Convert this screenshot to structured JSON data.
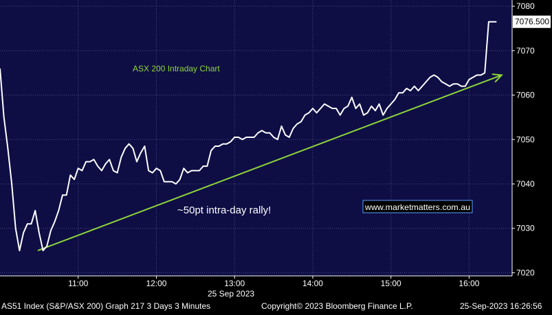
{
  "chart_data": {
    "type": "line",
    "title": "ASX 200 Intraday Chart",
    "annotation": "~50pt intra-day rally!",
    "watermark": "www.marketmatters.com.au",
    "date_label": "25 Sep 2023",
    "last_price_label": "7076.500",
    "x_ticks": [
      "11:00",
      "12:00",
      "13:00",
      "14:00",
      "15:00",
      "16:00"
    ],
    "y_ticks": [
      7020,
      7030,
      7040,
      7050,
      7060,
      7070,
      7080
    ],
    "ylim": [
      7019.3,
      7081.4
    ],
    "xlim": [
      "10:00",
      "16:33"
    ],
    "grid": true,
    "y_axis_side": "right",
    "series": [
      {
        "color": "#ffffff",
        "points": [
          [
            "10:00",
            7066
          ],
          [
            "10:03",
            7055
          ],
          [
            "10:06",
            7048
          ],
          [
            "10:09",
            7040
          ],
          [
            "10:12",
            7030
          ],
          [
            "10:15",
            7025
          ],
          [
            "10:18",
            7029
          ],
          [
            "10:21",
            7031
          ],
          [
            "10:24",
            7031
          ],
          [
            "10:27",
            7034
          ],
          [
            "10:30",
            7029
          ],
          [
            "10:33",
            7025
          ],
          [
            "10:36",
            7026
          ],
          [
            "10:39",
            7029.5
          ],
          [
            "10:42",
            7031.5
          ],
          [
            "10:45",
            7034
          ],
          [
            "10:48",
            7037.5
          ],
          [
            "10:51",
            7037.5
          ],
          [
            "10:54",
            7042
          ],
          [
            "10:57",
            7041
          ],
          [
            "11:00",
            7043.5
          ],
          [
            "11:03",
            7043
          ],
          [
            "11:06",
            7045
          ],
          [
            "11:09",
            7045
          ],
          [
            "11:12",
            7045.5
          ],
          [
            "11:15",
            7044
          ],
          [
            "11:18",
            7043
          ],
          [
            "11:21",
            7044.5
          ],
          [
            "11:24",
            7045.5
          ],
          [
            "11:27",
            7043
          ],
          [
            "11:30",
            7042.5
          ],
          [
            "11:33",
            7046
          ],
          [
            "11:36",
            7048
          ],
          [
            "11:39",
            7049
          ],
          [
            "11:42",
            7048
          ],
          [
            "11:45",
            7045
          ],
          [
            "11:48",
            7047
          ],
          [
            "11:51",
            7048.5
          ],
          [
            "11:54",
            7043
          ],
          [
            "11:57",
            7042.5
          ],
          [
            "12:00",
            7043.5
          ],
          [
            "12:03",
            7043
          ],
          [
            "12:06",
            7040.5
          ],
          [
            "12:09",
            7040.5
          ],
          [
            "12:12",
            7040.5
          ],
          [
            "12:15",
            7040
          ],
          [
            "12:18",
            7041
          ],
          [
            "12:21",
            7043.5
          ],
          [
            "12:24",
            7042.5
          ],
          [
            "12:27",
            7043
          ],
          [
            "12:30",
            7043
          ],
          [
            "12:33",
            7043
          ],
          [
            "12:36",
            7044
          ],
          [
            "12:39",
            7044
          ],
          [
            "12:42",
            7047.5
          ],
          [
            "12:45",
            7048.5
          ],
          [
            "12:48",
            7048.5
          ],
          [
            "12:51",
            7049
          ],
          [
            "12:54",
            7049
          ],
          [
            "12:57",
            7049.5
          ],
          [
            "13:00",
            7050.5
          ],
          [
            "13:03",
            7050.5
          ],
          [
            "13:06",
            7050
          ],
          [
            "13:09",
            7050.5
          ],
          [
            "13:12",
            7050.5
          ],
          [
            "13:15",
            7050.5
          ],
          [
            "13:18",
            7051.5
          ],
          [
            "13:21",
            7052
          ],
          [
            "13:24",
            7051.5
          ],
          [
            "13:27",
            7051.5
          ],
          [
            "13:30",
            7050.5
          ],
          [
            "13:33",
            7050
          ],
          [
            "13:36",
            7053
          ],
          [
            "13:39",
            7051
          ],
          [
            "13:42",
            7050.5
          ],
          [
            "13:45",
            7052.5
          ],
          [
            "13:48",
            7053.5
          ],
          [
            "13:51",
            7054
          ],
          [
            "13:54",
            7055.5
          ],
          [
            "13:57",
            7056
          ],
          [
            "14:00",
            7057
          ],
          [
            "14:03",
            7056
          ],
          [
            "14:06",
            7057
          ],
          [
            "14:09",
            7058
          ],
          [
            "14:12",
            7057.5
          ],
          [
            "14:15",
            7057
          ],
          [
            "14:18",
            7057
          ],
          [
            "14:21",
            7055.5
          ],
          [
            "14:24",
            7057
          ],
          [
            "14:27",
            7057.5
          ],
          [
            "14:30",
            7059.5
          ],
          [
            "14:33",
            7057
          ],
          [
            "14:36",
            7058
          ],
          [
            "14:39",
            7055.5
          ],
          [
            "14:42",
            7056
          ],
          [
            "14:45",
            7057.5
          ],
          [
            "14:48",
            7056.5
          ],
          [
            "14:51",
            7058
          ],
          [
            "14:54",
            7055.5
          ],
          [
            "14:57",
            7057
          ],
          [
            "15:00",
            7058
          ],
          [
            "15:03",
            7059
          ],
          [
            "15:06",
            7060.5
          ],
          [
            "15:09",
            7060.5
          ],
          [
            "15:12",
            7061.5
          ],
          [
            "15:15",
            7061
          ],
          [
            "15:18",
            7062
          ],
          [
            "15:21",
            7061
          ],
          [
            "15:24",
            7062
          ],
          [
            "15:27",
            7063
          ],
          [
            "15:30",
            7064
          ],
          [
            "15:33",
            7064.5
          ],
          [
            "15:36",
            7064
          ],
          [
            "15:39",
            7063
          ],
          [
            "15:42",
            7062.5
          ],
          [
            "15:45",
            7062
          ],
          [
            "15:48",
            7062.5
          ],
          [
            "15:51",
            7062.5
          ],
          [
            "15:54",
            7062
          ],
          [
            "15:57",
            7062
          ],
          [
            "16:00",
            7063.5
          ],
          [
            "16:03",
            7064
          ],
          [
            "16:06",
            7064.5
          ],
          [
            "16:09",
            7064.5
          ],
          [
            "16:12",
            7065
          ],
          [
            "16:15",
            7076.5
          ],
          [
            "16:18",
            7076.5
          ],
          [
            "16:21",
            7076.5
          ]
        ]
      }
    ],
    "trend_line": {
      "color": "#8fd63a",
      "from": [
        "10:29",
        7025
      ],
      "to": [
        "16:25",
        7064.5
      ]
    }
  },
  "footer": {
    "left": "AS51 Index (S&P/ASX 200) Graph 217 3 Days 3 Minutes",
    "center": "Copyright© 2023 Bloomberg Finance L.P.",
    "right": "25-Sep-2023 16:26:56"
  },
  "colors": {
    "plot_bg": "#0e0e45",
    "grid": "#4a4a82",
    "axis_text": "#ffffff",
    "title": "#8fd63a",
    "price_line": "#ffffff",
    "trend": "#8fd63a",
    "footer_bg": "#000000",
    "footer_text": "#ffffff"
  }
}
